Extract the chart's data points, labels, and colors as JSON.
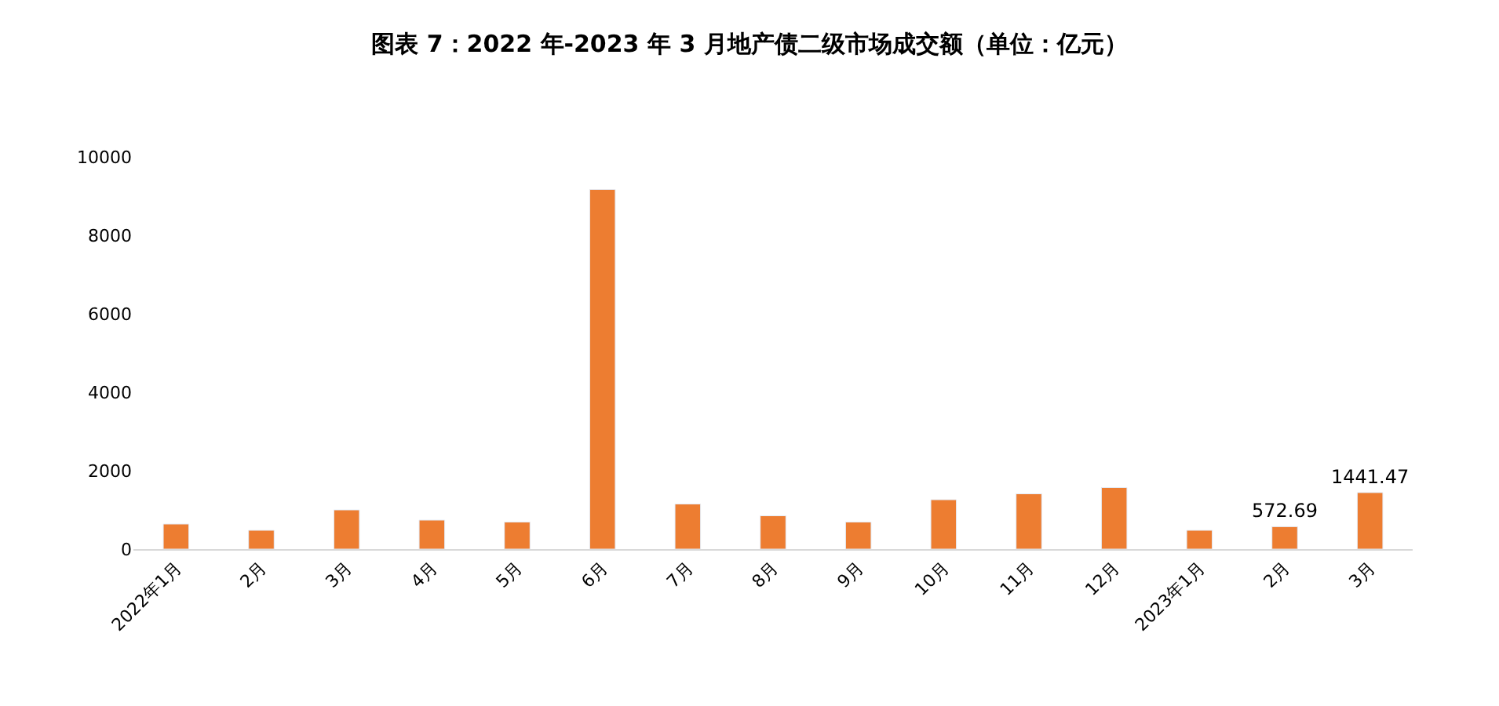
{
  "chart_data": {
    "type": "bar",
    "title": "图表 7：2022 年-2023 年 3 月地产债二级市场成交额（单位：亿元）",
    "categories": [
      "2022年1月",
      "2月",
      "3月",
      "4月",
      "5月",
      "6月",
      "7月",
      "8月",
      "9月",
      "10月",
      "11月",
      "12月",
      "2023年1月",
      "2月",
      "3月"
    ],
    "series": [
      {
        "color": "#ed7d31",
        "values": [
          640,
          480,
          1000,
          740,
          690,
          9170,
          1150,
          850,
          690,
          1260,
          1410,
          1570,
          480,
          572.69,
          1441.47
        ],
        "value_labels": [
          null,
          null,
          null,
          null,
          null,
          null,
          null,
          null,
          null,
          null,
          null,
          null,
          null,
          "572.69",
          "1441.47"
        ]
      }
    ],
    "ylim": [
      0,
      10000
    ],
    "yticks": [
      0,
      2000,
      4000,
      6000,
      8000,
      10000
    ],
    "grid": false
  }
}
